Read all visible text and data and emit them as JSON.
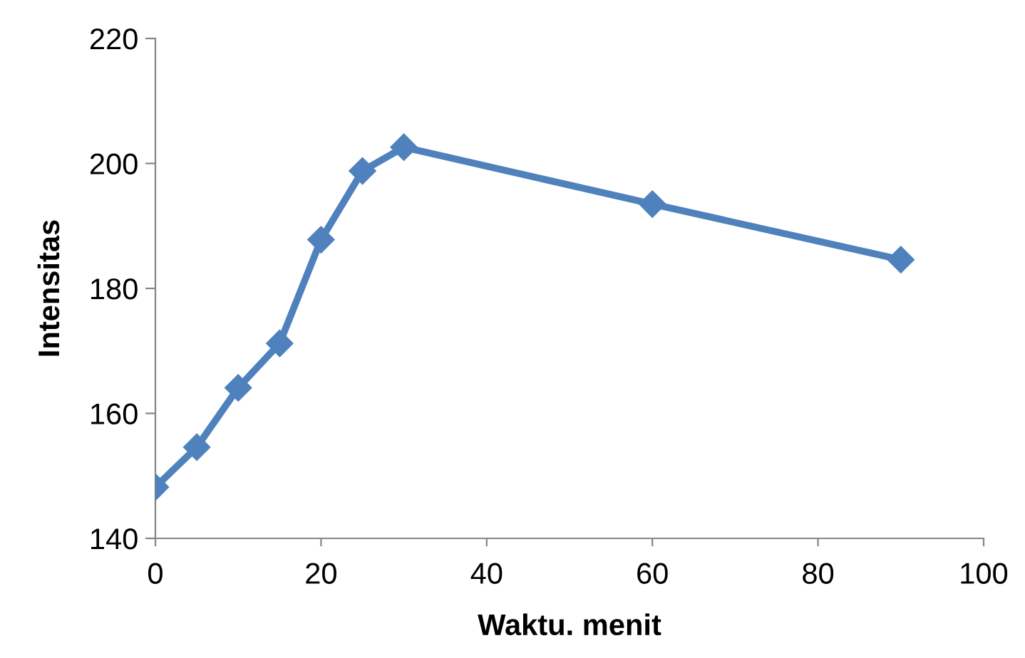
{
  "chart_data": {
    "type": "line",
    "xlabel": "Waktu. menit",
    "ylabel": "Intensitas",
    "x": [
      0,
      5,
      10,
      15,
      20,
      25,
      30,
      60,
      90
    ],
    "series": [
      {
        "color": "#4f81bd",
        "values": [
          148.2,
          154.6,
          164.1,
          171.2,
          187.8,
          198.8,
          202.6,
          193.5,
          184.6
        ]
      }
    ],
    "xlim": [
      0,
      100
    ],
    "xticks": [
      0,
      20,
      40,
      60,
      80,
      100
    ],
    "ylim": [
      140,
      220
    ],
    "yticks": [
      140,
      160,
      180,
      200,
      220
    ],
    "grid": false,
    "legend": false,
    "marker": "diamond",
    "line_style": "solid"
  }
}
